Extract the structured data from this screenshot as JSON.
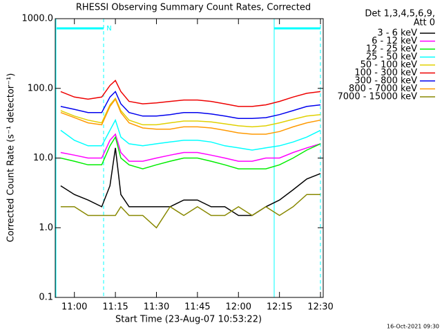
{
  "chart_data": {
    "type": "line",
    "title": "RHESSI Observing Summary Count Rates, Corrected",
    "x_label": "Start Time (23-Aug-07 10:53:22)",
    "y_label": "Corrected Count Rate (s⁻¹ detector⁻¹)",
    "legend_header": [
      "Det 1,3,4,5,6,9,",
      "Att 0"
    ],
    "flag_label": "N",
    "timestamp": "16-Oct-2021 09:30",
    "log_y": true,
    "xlim": [
      "10:53",
      "12:31"
    ],
    "xticks": [
      "11:00",
      "11:15",
      "11:30",
      "11:45",
      "12:00",
      "12:15",
      "12:30"
    ],
    "ylim": [
      0.1,
      1000
    ],
    "yticks": [
      0.1,
      {
        "value": 1,
        "label": "1.0"
      },
      {
        "value": 10,
        "label": "10.0"
      },
      {
        "value": 100,
        "label": "100.0"
      },
      {
        "value": 1000,
        "label": "1000.0"
      }
    ],
    "x": [
      "10:55",
      "11:00",
      "11:05",
      "11:10",
      "11:13",
      "11:15",
      "11:17",
      "11:20",
      "11:25",
      "11:30",
      "11:35",
      "11:40",
      "11:45",
      "11:50",
      "11:55",
      "12:00",
      "12:05",
      "12:10",
      "12:15",
      "12:20",
      "12:25",
      "12:30"
    ],
    "series": [
      {
        "name": "3 - 6 keV",
        "color": "#000000",
        "values": [
          4,
          3,
          2.5,
          2,
          4,
          14,
          3,
          2,
          2,
          2,
          2,
          2.5,
          2.5,
          2,
          2,
          1.5,
          1.5,
          2,
          2.5,
          3.5,
          5,
          6
        ]
      },
      {
        "name": "6 - 12 keV",
        "color": "#ff00ff",
        "values": [
          12,
          11,
          10,
          10,
          18,
          22,
          12,
          9,
          9,
          10,
          11,
          12,
          12,
          11,
          10,
          9,
          9,
          10,
          10,
          12,
          14,
          16
        ]
      },
      {
        "name": "12 - 25 keV",
        "color": "#00ee00",
        "values": [
          10,
          9,
          8,
          8,
          15,
          20,
          10,
          8,
          7,
          8,
          9,
          10,
          10,
          9,
          8,
          7,
          7,
          7,
          8,
          10,
          13,
          16
        ]
      },
      {
        "name": "25 - 50 keV",
        "color": "#00ffff",
        "values": [
          25,
          18,
          15,
          15,
          25,
          35,
          20,
          16,
          15,
          16,
          17,
          18,
          18,
          17,
          15,
          14,
          13,
          14,
          15,
          17,
          20,
          25
        ]
      },
      {
        "name": "50 - 100 keV",
        "color": "#e0d000",
        "values": [
          48,
          40,
          35,
          32,
          58,
          72,
          48,
          35,
          30,
          30,
          32,
          34,
          34,
          33,
          31,
          29,
          28,
          29,
          32,
          36,
          40,
          42
        ]
      },
      {
        "name": "100 - 300 keV",
        "color": "#ee0000",
        "values": [
          90,
          75,
          70,
          75,
          110,
          130,
          90,
          65,
          60,
          62,
          65,
          68,
          68,
          65,
          60,
          55,
          55,
          58,
          65,
          75,
          85,
          90
        ]
      },
      {
        "name": "300 - 800 keV",
        "color": "#0000ee",
        "values": [
          55,
          50,
          45,
          45,
          75,
          90,
          60,
          45,
          40,
          40,
          42,
          45,
          45,
          43,
          40,
          37,
          37,
          38,
          42,
          48,
          55,
          58
        ]
      },
      {
        "name": "800 - 7000 keV",
        "color": "#ff9900",
        "values": [
          45,
          38,
          32,
          30,
          55,
          70,
          45,
          32,
          27,
          26,
          26,
          28,
          28,
          27,
          25,
          23,
          22,
          22,
          24,
          28,
          32,
          35
        ]
      },
      {
        "name": "7000 - 15000 keV",
        "color": "#888800",
        "values": [
          2,
          2,
          1.5,
          1.5,
          1.5,
          1.5,
          2,
          1.5,
          1.5,
          1,
          2,
          1.5,
          2,
          1.5,
          1.5,
          2,
          1.5,
          2,
          1.5,
          2,
          3,
          3
        ]
      }
    ]
  }
}
